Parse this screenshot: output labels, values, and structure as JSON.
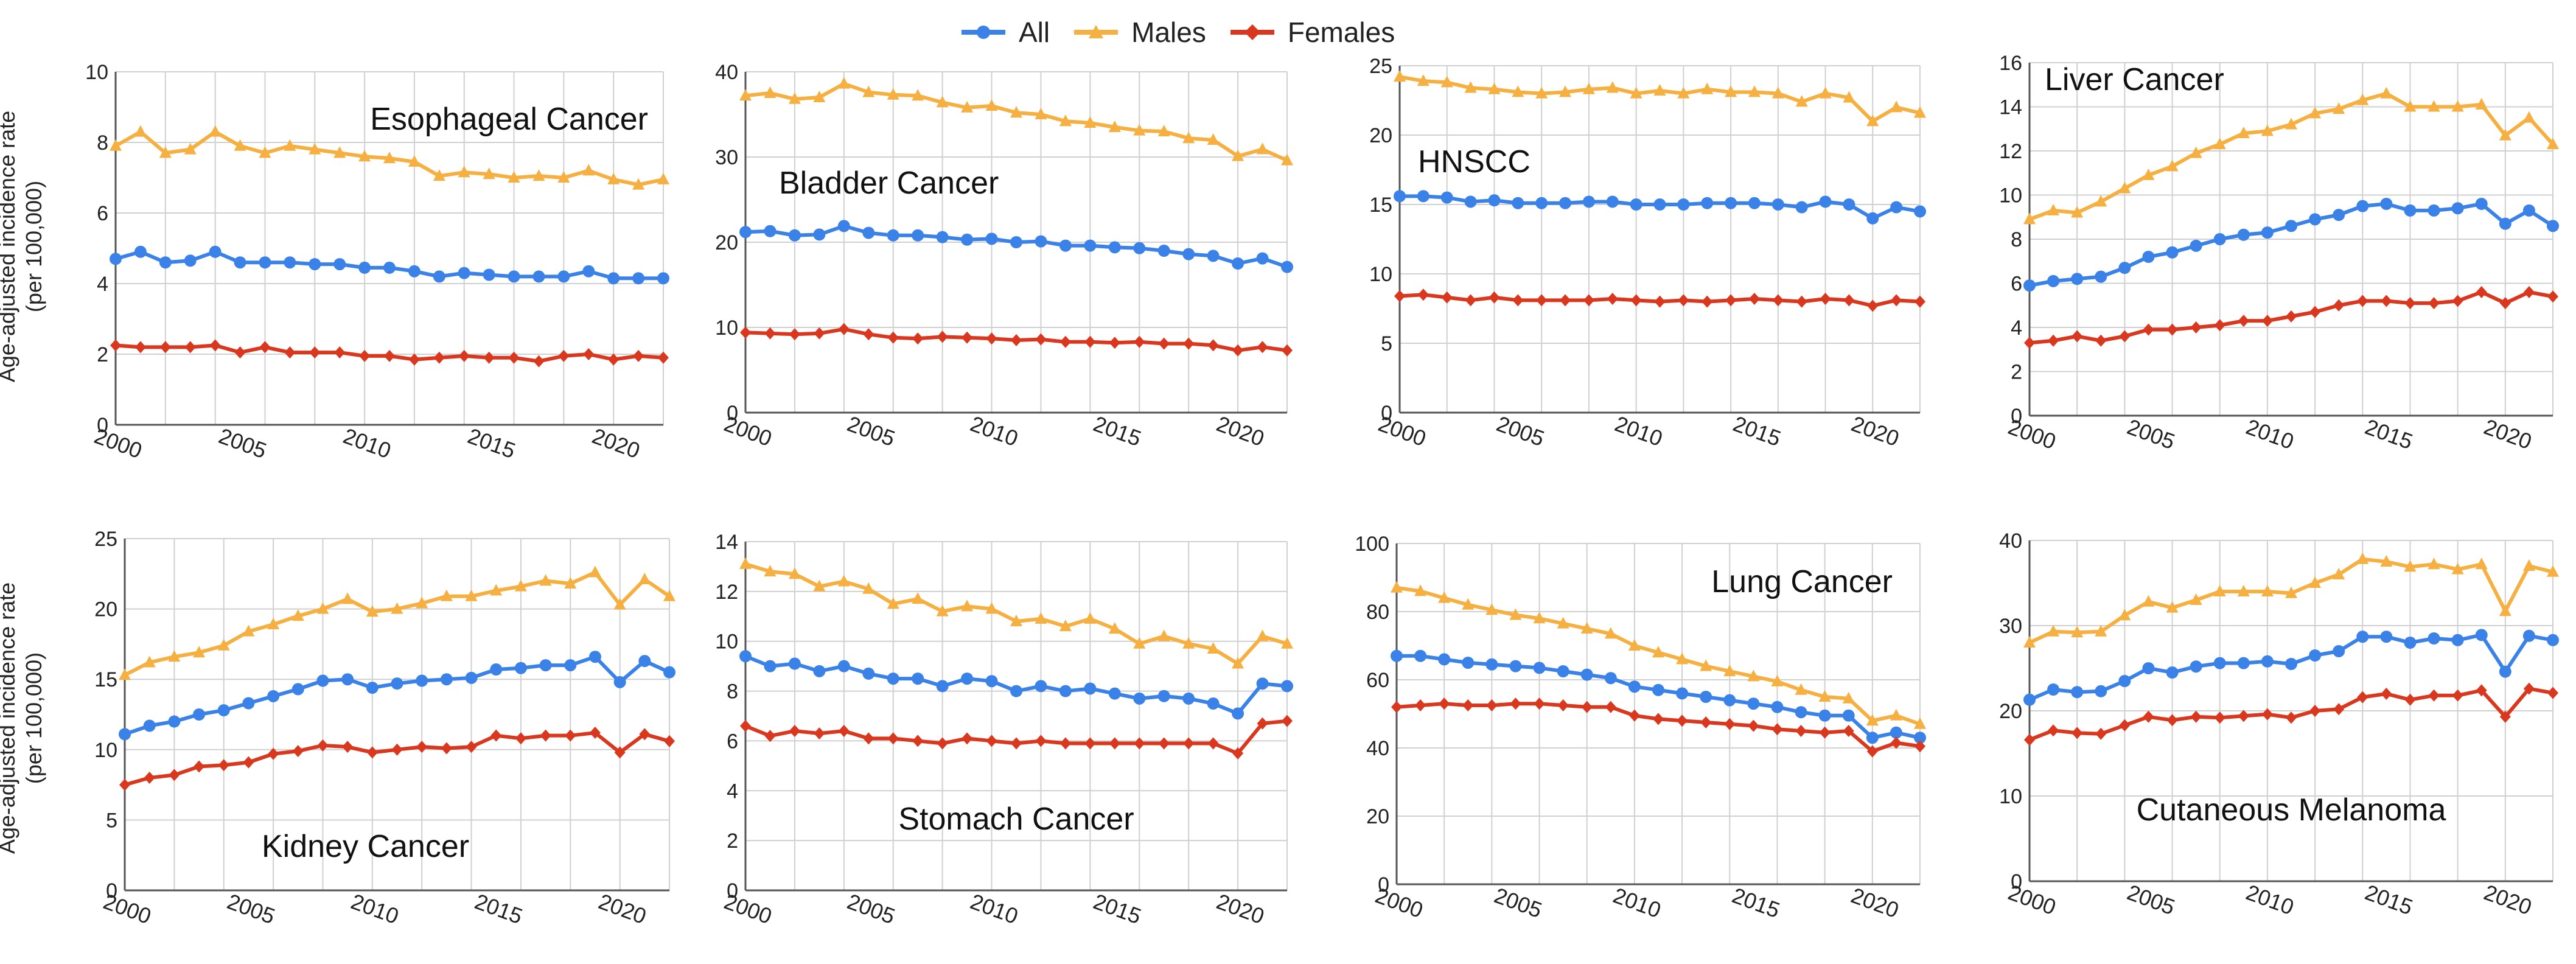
{
  "legend": [
    {
      "label": "All",
      "color": "#3b82e8"
    },
    {
      "label": "Males",
      "color": "#f5b041"
    },
    {
      "label": "Females",
      "color": "#d9381e"
    }
  ],
  "y_axis_label_line1": "Age-adjusted incidence rate",
  "y_axis_label_line2": "(per 100,000)",
  "x_tick_labels": [
    "2000",
    "2005",
    "2010",
    "2015",
    "2020"
  ],
  "chart_data": [
    {
      "type": "line",
      "title": "Esophageal Cancer",
      "x_start": 2000,
      "x_end": 2022,
      "ylim": [
        0,
        10
      ],
      "yticks": [
        0,
        2,
        4,
        6,
        8,
        10
      ],
      "title_pos": "top-right",
      "series": [
        {
          "name": "All",
          "values": [
            4.7,
            4.9,
            4.6,
            4.65,
            4.9,
            4.6,
            4.6,
            4.6,
            4.55,
            4.55,
            4.45,
            4.45,
            4.35,
            4.2,
            4.3,
            4.25,
            4.2,
            4.2,
            4.2,
            4.35,
            4.15,
            4.15,
            4.15
          ]
        },
        {
          "name": "Males",
          "values": [
            7.9,
            8.3,
            7.7,
            7.8,
            8.3,
            7.9,
            7.7,
            7.9,
            7.8,
            7.7,
            7.6,
            7.55,
            7.45,
            7.05,
            7.15,
            7.1,
            7.0,
            7.05,
            7.0,
            7.2,
            6.95,
            6.8,
            6.95
          ]
        },
        {
          "name": "Females",
          "values": [
            2.25,
            2.2,
            2.2,
            2.2,
            2.25,
            2.05,
            2.2,
            2.05,
            2.05,
            2.05,
            1.95,
            1.95,
            1.85,
            1.9,
            1.95,
            1.9,
            1.9,
            1.8,
            1.95,
            2.0,
            1.85,
            1.95,
            1.9
          ]
        }
      ]
    },
    {
      "type": "line",
      "title": "Bladder Cancer",
      "x_start": 2000,
      "x_end": 2022,
      "ylim": [
        0,
        40
      ],
      "yticks": [
        0,
        10,
        20,
        30,
        40
      ],
      "title_pos": "upper-left",
      "series": [
        {
          "name": "All",
          "values": [
            21.2,
            21.3,
            20.8,
            20.9,
            21.9,
            21.1,
            20.8,
            20.8,
            20.6,
            20.3,
            20.4,
            20.0,
            20.1,
            19.6,
            19.6,
            19.4,
            19.3,
            19.0,
            18.6,
            18.4,
            17.5,
            18.1,
            17.1
          ]
        },
        {
          "name": "Males",
          "values": [
            37.2,
            37.5,
            36.8,
            37.0,
            38.6,
            37.6,
            37.3,
            37.2,
            36.4,
            35.8,
            36.0,
            35.2,
            35.0,
            34.2,
            34.0,
            33.5,
            33.1,
            33.0,
            32.2,
            32.0,
            30.1,
            30.9,
            29.6
          ]
        },
        {
          "name": "Females",
          "values": [
            9.4,
            9.3,
            9.2,
            9.3,
            9.8,
            9.2,
            8.8,
            8.7,
            8.9,
            8.8,
            8.7,
            8.5,
            8.6,
            8.3,
            8.3,
            8.2,
            8.3,
            8.1,
            8.1,
            7.9,
            7.3,
            7.7,
            7.3
          ]
        }
      ]
    },
    {
      "type": "line",
      "title": "HNSCC",
      "x_start": 2000,
      "x_end": 2022,
      "ylim": [
        0,
        25
      ],
      "yticks": [
        0,
        5,
        10,
        15,
        20,
        25
      ],
      "title_pos": "middle-left",
      "series": [
        {
          "name": "All",
          "values": [
            15.6,
            15.6,
            15.5,
            15.2,
            15.3,
            15.1,
            15.1,
            15.1,
            15.2,
            15.2,
            15.0,
            15.0,
            15.0,
            15.1,
            15.1,
            15.1,
            15.0,
            14.8,
            15.2,
            15.0,
            14.0,
            14.8,
            14.5
          ]
        },
        {
          "name": "Males",
          "values": [
            24.2,
            23.9,
            23.8,
            23.4,
            23.3,
            23.1,
            23.0,
            23.1,
            23.3,
            23.4,
            23.0,
            23.2,
            23.0,
            23.3,
            23.1,
            23.1,
            23.0,
            22.4,
            23.0,
            22.7,
            21.0,
            22.0,
            21.6
          ]
        },
        {
          "name": "Females",
          "values": [
            8.4,
            8.5,
            8.3,
            8.1,
            8.3,
            8.1,
            8.1,
            8.1,
            8.1,
            8.2,
            8.1,
            8.0,
            8.1,
            8.0,
            8.1,
            8.2,
            8.1,
            8.0,
            8.2,
            8.1,
            7.7,
            8.1,
            8.0
          ]
        }
      ]
    },
    {
      "type": "line",
      "title": "Liver Cancer",
      "x_start": 2000,
      "x_end": 2022,
      "ylim": [
        0,
        16
      ],
      "yticks": [
        0,
        2,
        4,
        6,
        8,
        10,
        12,
        14,
        16
      ],
      "title_pos": "top-left",
      "series": [
        {
          "name": "All",
          "values": [
            5.9,
            6.1,
            6.2,
            6.3,
            6.7,
            7.2,
            7.4,
            7.7,
            8.0,
            8.2,
            8.3,
            8.6,
            8.9,
            9.1,
            9.5,
            9.6,
            9.3,
            9.3,
            9.4,
            9.6,
            8.7,
            9.3,
            8.6
          ]
        },
        {
          "name": "Males",
          "values": [
            8.9,
            9.3,
            9.2,
            9.7,
            10.3,
            10.9,
            11.3,
            11.9,
            12.3,
            12.8,
            12.9,
            13.2,
            13.7,
            13.9,
            14.3,
            14.6,
            14.0,
            14.0,
            14.0,
            14.1,
            12.7,
            13.5,
            12.3
          ]
        },
        {
          "name": "Females",
          "values": [
            3.3,
            3.4,
            3.6,
            3.4,
            3.6,
            3.9,
            3.9,
            4.0,
            4.1,
            4.3,
            4.3,
            4.5,
            4.7,
            5.0,
            5.2,
            5.2,
            5.1,
            5.1,
            5.2,
            5.6,
            5.1,
            5.6,
            5.4
          ]
        }
      ]
    },
    {
      "type": "line",
      "title": "Kidney Cancer",
      "x_start": 2000,
      "x_end": 2022,
      "ylim": [
        0,
        25
      ],
      "yticks": [
        0,
        5,
        10,
        15,
        20,
        25
      ],
      "title_pos": "bottom-left",
      "series": [
        {
          "name": "All",
          "values": [
            11.1,
            11.7,
            12.0,
            12.5,
            12.8,
            13.3,
            13.8,
            14.3,
            14.9,
            15.0,
            14.4,
            14.7,
            14.9,
            15.0,
            15.1,
            15.7,
            15.8,
            16.0,
            16.0,
            16.6,
            14.8,
            16.3,
            15.5
          ]
        },
        {
          "name": "Males",
          "values": [
            15.3,
            16.2,
            16.6,
            16.9,
            17.4,
            18.4,
            18.9,
            19.5,
            20.0,
            20.7,
            19.8,
            20.0,
            20.4,
            20.9,
            20.9,
            21.3,
            21.6,
            22.0,
            21.8,
            22.6,
            20.3,
            22.1,
            20.9
          ]
        },
        {
          "name": "Females",
          "values": [
            7.5,
            8.0,
            8.2,
            8.8,
            8.9,
            9.1,
            9.7,
            9.9,
            10.3,
            10.2,
            9.8,
            10.0,
            10.2,
            10.1,
            10.2,
            11.0,
            10.8,
            11.0,
            11.0,
            11.2,
            9.8,
            11.1,
            10.6
          ]
        }
      ]
    },
    {
      "type": "line",
      "title": "Stomach Cancer",
      "x_start": 2000,
      "x_end": 2022,
      "ylim": [
        0,
        14
      ],
      "yticks": [
        0,
        2,
        4,
        6,
        8,
        10,
        12,
        14
      ],
      "title_pos": "bottom-center",
      "series": [
        {
          "name": "All",
          "values": [
            9.4,
            9.0,
            9.1,
            8.8,
            9.0,
            8.7,
            8.5,
            8.5,
            8.2,
            8.5,
            8.4,
            8.0,
            8.2,
            8.0,
            8.1,
            7.9,
            7.7,
            7.8,
            7.7,
            7.5,
            7.1,
            8.3,
            8.2
          ]
        },
        {
          "name": "Males",
          "values": [
            13.1,
            12.8,
            12.7,
            12.2,
            12.4,
            12.1,
            11.5,
            11.7,
            11.2,
            11.4,
            11.3,
            10.8,
            10.9,
            10.6,
            10.9,
            10.5,
            9.9,
            10.2,
            9.9,
            9.7,
            9.1,
            10.2,
            9.9
          ]
        },
        {
          "name": "Females",
          "values": [
            6.6,
            6.2,
            6.4,
            6.3,
            6.4,
            6.1,
            6.1,
            6.0,
            5.9,
            6.1,
            6.0,
            5.9,
            6.0,
            5.9,
            5.9,
            5.9,
            5.9,
            5.9,
            5.9,
            5.9,
            5.5,
            6.7,
            6.8
          ]
        }
      ]
    },
    {
      "type": "line",
      "title": "Lung Cancer",
      "x_start": 2000,
      "x_end": 2022,
      "ylim": [
        0,
        100
      ],
      "yticks": [
        0,
        20,
        40,
        60,
        80,
        100
      ],
      "title_pos": "upper-right",
      "series": [
        {
          "name": "All",
          "values": [
            67,
            67,
            66,
            65,
            64.5,
            64,
            63.5,
            62.5,
            61.5,
            60.5,
            58,
            57,
            56,
            55,
            54,
            53,
            52,
            50.5,
            49.5,
            49.5,
            43,
            44.5,
            43
          ]
        },
        {
          "name": "Males",
          "values": [
            87,
            86,
            84,
            82,
            80.5,
            79,
            78,
            76.5,
            75,
            73.5,
            70,
            68,
            66,
            64,
            62.5,
            61,
            59.5,
            57,
            55,
            54.5,
            48,
            49.5,
            47
          ]
        },
        {
          "name": "Females",
          "values": [
            52,
            52.5,
            53,
            52.5,
            52.5,
            53,
            53,
            52.5,
            52,
            52,
            49.5,
            48.5,
            48,
            47.5,
            47,
            46.5,
            45.5,
            45,
            44.5,
            45,
            39,
            41.5,
            40.5
          ]
        }
      ]
    },
    {
      "type": "line",
      "title": "Cutaneous Melanoma",
      "x_start": 2000,
      "x_end": 2022,
      "ylim": [
        0,
        40
      ],
      "yticks": [
        0,
        10,
        20,
        30,
        40
      ],
      "title_pos": "bottom-center",
      "series": [
        {
          "name": "All",
          "values": [
            21.3,
            22.5,
            22.2,
            22.3,
            23.5,
            25.0,
            24.5,
            25.2,
            25.6,
            25.6,
            25.8,
            25.5,
            26.5,
            27.0,
            28.7,
            28.7,
            28.0,
            28.5,
            28.3,
            28.9,
            24.6,
            28.8,
            28.3
          ]
        },
        {
          "name": "Males",
          "values": [
            28.0,
            29.3,
            29.2,
            29.3,
            31.2,
            32.8,
            32.1,
            33.0,
            34.0,
            34.0,
            34.0,
            33.8,
            35.0,
            36.0,
            37.8,
            37.5,
            36.9,
            37.2,
            36.6,
            37.2,
            31.7,
            37.0,
            36.3
          ]
        },
        {
          "name": "Females",
          "values": [
            16.6,
            17.7,
            17.4,
            17.3,
            18.3,
            19.3,
            18.9,
            19.3,
            19.2,
            19.4,
            19.6,
            19.2,
            20.0,
            20.2,
            21.6,
            22.0,
            21.3,
            21.8,
            21.8,
            22.4,
            19.3,
            22.6,
            22.1
          ]
        }
      ]
    }
  ]
}
